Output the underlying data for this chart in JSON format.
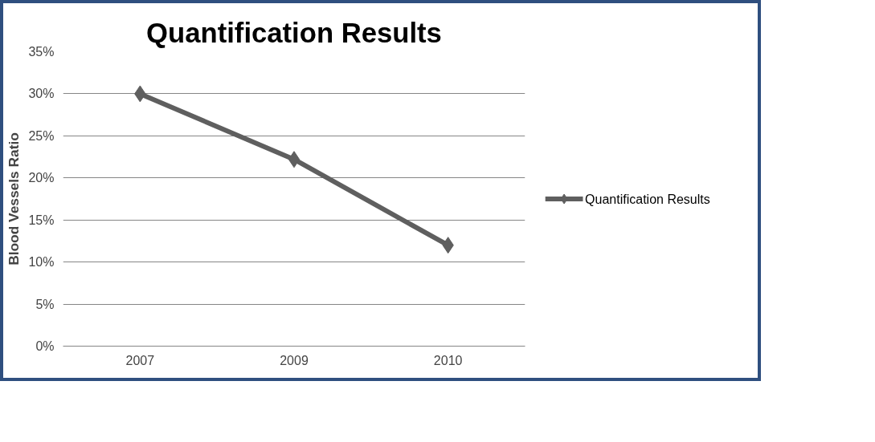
{
  "chart_data": {
    "type": "line",
    "title": "Quantification Results",
    "ylabel": "Blood Vessels Ratio",
    "categories": [
      "2007",
      "2009",
      "2010"
    ],
    "series": [
      {
        "name": "Quantification Results",
        "color": "#5f5f5f",
        "values": [
          30,
          22.2,
          12
        ]
      }
    ],
    "ylim": [
      0,
      35
    ],
    "yticks": [
      {
        "value": 0,
        "label": "0%"
      },
      {
        "value": 5,
        "label": "5%"
      },
      {
        "value": 10,
        "label": "10%"
      },
      {
        "value": 15,
        "label": "15%"
      },
      {
        "value": 20,
        "label": "20%"
      },
      {
        "value": 25,
        "label": "25%"
      },
      {
        "value": 30,
        "label": "30%"
      },
      {
        "value": 35,
        "label": "35%"
      }
    ],
    "grid": "y",
    "legend": "right",
    "marker": "diamond",
    "line_style": "solid"
  }
}
